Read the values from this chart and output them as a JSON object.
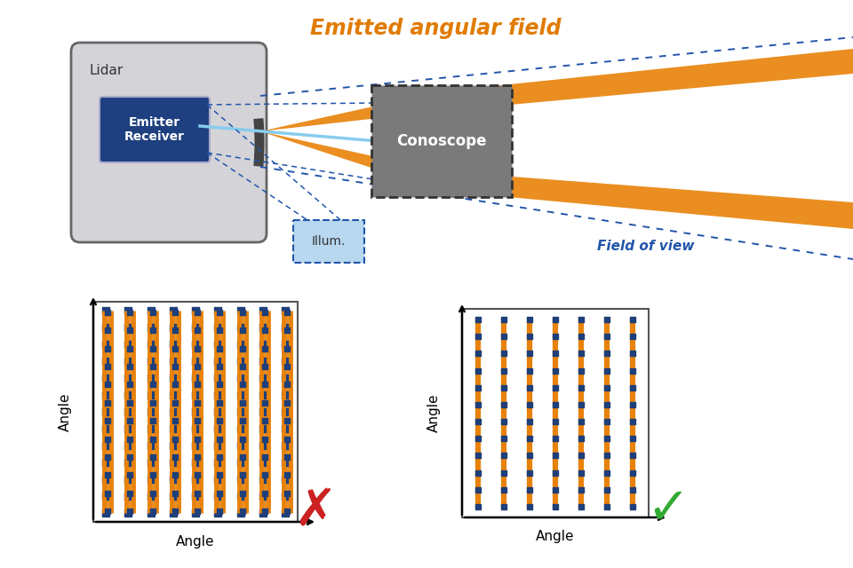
{
  "bg_color": "#ffffff",
  "title_text": "Emitted angular field",
  "title_color": "#e07b00",
  "fov_text": "Field of view",
  "fov_color": "#2255aa",
  "lidar_label": "Lidar",
  "emitter_label": "Emitter\nReceiver",
  "conoscope_label": "Conoscope",
  "illum_label": "Illum.",
  "angle_label": "Angle",
  "wrong_color": "#cc2222",
  "right_color": "#33aa33",
  "orange_color": "#e8820a",
  "blue_color": "#2255aa",
  "dark_blue_color": "#1e3f7a",
  "lidar_bg": "#d4d4d8",
  "emitter_bg": "#1e4080",
  "conoscope_bg": "#7a7a7a",
  "illum_bg": "#b8d8f0"
}
